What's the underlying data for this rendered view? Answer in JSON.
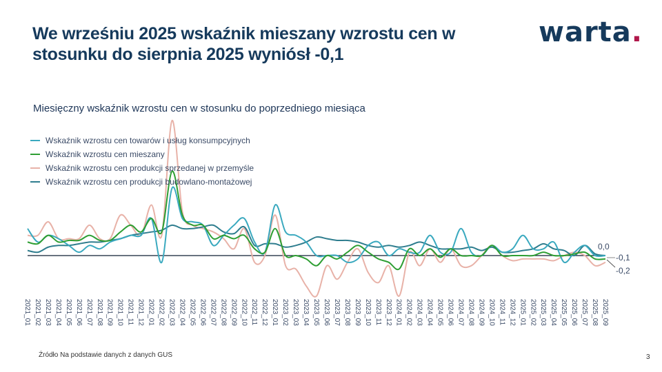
{
  "title": "We wrześniu 2025 wskaźnik mieszany wzrostu cen w stosunku do sierpnia 2025 wyniósł -0,1",
  "logo": {
    "text": "warta",
    "dot": "."
  },
  "footer": {
    "source": "Źródło  Na podstawie danych z  danych GUS",
    "page_number": "3"
  },
  "chart_data": {
    "type": "line",
    "title": "Miesięczny wskaźnik wzrostu cen w stosunku do poprzedniego miesiąca",
    "xlabel": "",
    "ylabel": "",
    "ylim": [
      -1.3,
      4.2
    ],
    "grid": false,
    "legend_position": "top-left",
    "categories": [
      "2021_01",
      "2021_02",
      "2021_03",
      "2021_04",
      "2021_05",
      "2021_06",
      "2021_07",
      "2021_08",
      "2021_09",
      "2021_10",
      "2021_11",
      "2021_12",
      "2022_01",
      "2022_02",
      "2022_03",
      "2022_04",
      "2022_05",
      "2022_06",
      "2022_07",
      "2022_08",
      "2022_09",
      "2022_10",
      "2022_11",
      "2022_12",
      "2023_01",
      "2023_02",
      "2023_03",
      "2023_04",
      "2023_05",
      "2023_06",
      "2023_07",
      "2023_08",
      "2023_09",
      "2023_10",
      "2023_11",
      "2023_12",
      "2024_01",
      "2024_02",
      "2024_03",
      "2024_04",
      "2024_05",
      "2024_06",
      "2024_07",
      "2024_08",
      "2024_09",
      "2024_10",
      "2024_11",
      "2024_12",
      "2025_01",
      "2025_02",
      "2025_03",
      "2025_04",
      "2025_05",
      "2025_06",
      "2025_07",
      "2025_08",
      "2025_09"
    ],
    "series": [
      {
        "name": "Wskaźnik wzrostu cen towarów i usług konsumpcyjnych",
        "color": "#3aa9bf",
        "values": [
          0.8,
          0.4,
          0.6,
          0.5,
          0.3,
          0.1,
          0.3,
          0.2,
          0.4,
          0.5,
          0.6,
          0.6,
          1.1,
          -0.2,
          2.0,
          1.1,
          1.0,
          0.9,
          0.3,
          0.6,
          0.9,
          1.1,
          0.4,
          0.1,
          1.5,
          0.7,
          0.6,
          0.4,
          0.0,
          0.0,
          0.0,
          -0.2,
          -0.1,
          0.3,
          0.4,
          0.0,
          0.2,
          0.1,
          0.1,
          0.6,
          0.1,
          0.1,
          0.8,
          0.1,
          0.0,
          0.3,
          0.1,
          0.2,
          0.6,
          0.2,
          0.2,
          0.4,
          -0.2,
          0.1,
          0.3,
          0.0,
          0.0
        ]
      },
      {
        "name": "Wskaźnik wzrostu cen mieszany",
        "color": "#2e9e33",
        "values": [
          0.4,
          0.35,
          0.6,
          0.4,
          0.45,
          0.45,
          0.6,
          0.45,
          0.45,
          0.7,
          0.9,
          0.7,
          1.1,
          0.7,
          2.5,
          1.2,
          0.9,
          0.9,
          0.5,
          0.6,
          0.5,
          0.6,
          0.2,
          0.1,
          0.8,
          0.0,
          0.0,
          -0.1,
          -0.3,
          0.0,
          -0.1,
          0.1,
          0.3,
          0.1,
          -0.1,
          -0.2,
          -0.4,
          0.2,
          0.0,
          0.2,
          -0.05,
          0.2,
          0.0,
          0.0,
          0.0,
          0.3,
          0.0,
          0.0,
          0.0,
          0.0,
          0.1,
          0.0,
          0.0,
          0.05,
          0.1,
          -0.1,
          -0.1
        ]
      },
      {
        "name": "Wskaźnik wzrostu cen produkcji sprzedanej w przemyśle",
        "color": "#e8b2a8",
        "values": [
          0.6,
          0.6,
          1.0,
          0.5,
          0.5,
          0.5,
          0.9,
          0.5,
          0.5,
          1.2,
          0.9,
          0.6,
          1.5,
          0.6,
          4.0,
          1.3,
          0.9,
          0.8,
          0.7,
          0.5,
          0.2,
          0.8,
          -0.2,
          0.0,
          1.2,
          -0.3,
          -0.4,
          -0.9,
          -1.2,
          -0.3,
          -0.7,
          -0.2,
          0.2,
          -0.5,
          -0.8,
          -0.3,
          -1.2,
          0.1,
          -0.3,
          0.2,
          -0.2,
          0.2,
          -0.3,
          -0.3,
          0.0,
          0.3,
          0.0,
          -0.15,
          -0.1,
          -0.1,
          -0.1,
          -0.15,
          0.0,
          0.1,
          0.0,
          -0.3,
          -0.2
        ]
      },
      {
        "name": "Wskaźnik wzrostu cen produkcji budowlano-montażowej",
        "color": "#2e7d8e",
        "values": [
          0.15,
          0.1,
          0.25,
          0.3,
          0.3,
          0.35,
          0.4,
          0.4,
          0.45,
          0.5,
          0.6,
          0.65,
          0.7,
          0.75,
          0.9,
          0.8,
          0.8,
          0.85,
          0.9,
          0.7,
          0.65,
          0.85,
          0.3,
          0.35,
          0.35,
          0.25,
          0.3,
          0.4,
          0.55,
          0.5,
          0.45,
          0.45,
          0.4,
          0.3,
          0.25,
          0.3,
          0.25,
          0.3,
          0.4,
          0.3,
          0.2,
          0.2,
          0.2,
          0.25,
          0.15,
          0.25,
          0.1,
          0.1,
          0.15,
          0.2,
          0.35,
          0.2,
          0.15,
          0.0,
          0.3,
          0.05,
          0.0
        ]
      }
    ],
    "end_labels": [
      "0,0",
      "-0,1",
      "-0,2"
    ]
  }
}
